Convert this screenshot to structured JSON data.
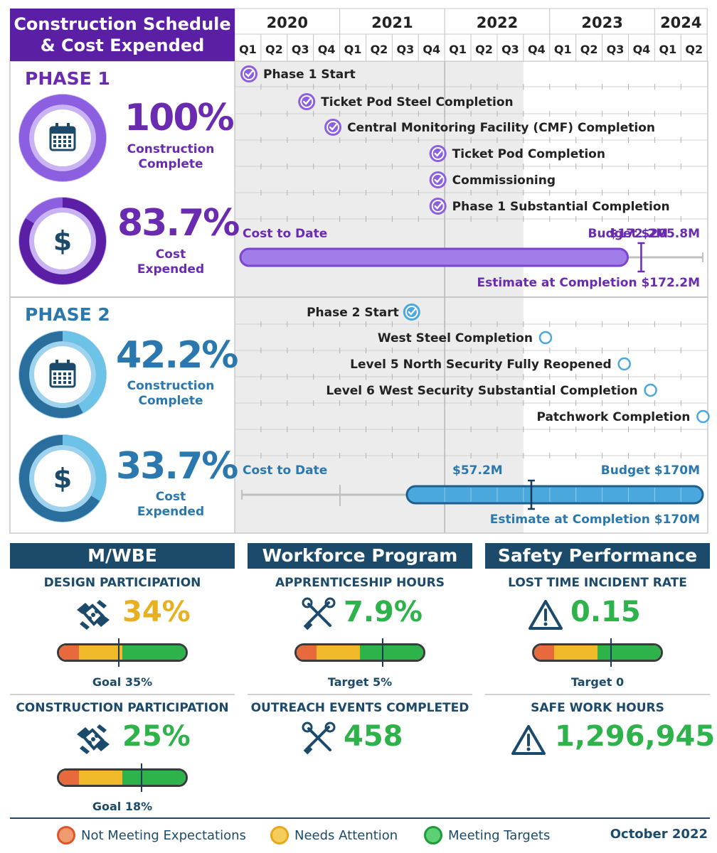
{
  "header": {
    "title_line1": "Construction Schedule",
    "title_line2": "& Cost Expended"
  },
  "timeline": {
    "years": [
      "2020",
      "2021",
      "2022",
      "2023",
      "2024"
    ],
    "quarters": [
      "Q1",
      "Q2",
      "Q3",
      "Q4",
      "Q1",
      "Q2",
      "Q3",
      "Q4",
      "Q1",
      "Q2",
      "Q3",
      "Q4",
      "Q1",
      "Q2",
      "Q3",
      "Q4",
      "Q1",
      "Q2"
    ]
  },
  "chart_data": {
    "type": "timeline",
    "phases": [
      {
        "name": "PHASE 1",
        "construction_pct": "100%",
        "construction_value": 100,
        "construction_label_1": "Construction",
        "construction_label_2": "Complete",
        "cost_pct": "83.7%",
        "cost_value": 83.7,
        "cost_label_1": "Cost",
        "cost_label_2": "Expended",
        "milestones": [
          {
            "label": "Phase 1 Start",
            "quarter_index": 0.0,
            "status": "complete"
          },
          {
            "label": "Ticket Pod Steel Completion",
            "quarter_index": 2.2,
            "status": "complete"
          },
          {
            "label": "Central Monitoring Facility (CMF) Completion",
            "quarter_index": 3.2,
            "status": "complete"
          },
          {
            "label": "Ticket Pod Completion",
            "quarter_index": 7.2,
            "status": "complete"
          },
          {
            "label": "Commissioning",
            "quarter_index": 7.2,
            "status": "complete"
          },
          {
            "label": "Phase 1 Substantial Completion",
            "quarter_index": 7.2,
            "status": "complete"
          }
        ],
        "cost": {
          "cost_to_date_label": "Cost to Date",
          "cost_to_date": "$172.2M",
          "budget": "Budget $205.8M",
          "estimate": "Estimate at Completion $172.2M",
          "cost_to_date_value": 172.2,
          "budget_value": 205.8,
          "estimate_value": 172.2
        }
      },
      {
        "name": "PHASE 2",
        "construction_pct": "42.2%",
        "construction_value": 42.2,
        "construction_label_1": "Construction",
        "construction_label_2": "Complete",
        "cost_pct": "33.7%",
        "cost_value": 33.7,
        "cost_label_1": "Cost",
        "cost_label_2": "Expended",
        "milestones": [
          {
            "label": "Phase 2 Start",
            "quarter_index": 6.2,
            "status": "complete"
          },
          {
            "label": "West Steel Completion",
            "quarter_index": 11.3,
            "status": "pending"
          },
          {
            "label": "Level 5 North Security Fully Reopened",
            "quarter_index": 14.3,
            "status": "pending"
          },
          {
            "label": "Level 6 West Security Substantial Completion",
            "quarter_index": 15.3,
            "status": "pending"
          },
          {
            "label": "Patchwork Completion",
            "quarter_index": 17.3,
            "status": "pending"
          }
        ],
        "cost": {
          "cost_to_date_label": "Cost to Date",
          "cost_to_date": "$57.2M",
          "budget": "Budget $170M",
          "estimate": "Estimate at Completion $170M",
          "cost_to_date_value": 57.2,
          "budget_value": 170,
          "estimate_value": 170
        }
      }
    ]
  },
  "panels": {
    "mwbe": {
      "title": "M/WBE",
      "m1": {
        "title": "DESIGN PARTICIPATION",
        "value": "34%",
        "goal": "Goal 35%",
        "level": 0.47,
        "color": "#e8b020",
        "icon": "handshake-icon"
      },
      "m2": {
        "title": "CONSTRUCTION PARTICIPATION",
        "value": "25%",
        "goal": "Goal 18%",
        "level": 0.64,
        "color": "#2db34a",
        "icon": "handshake-icon"
      }
    },
    "workforce": {
      "title": "Workforce Program",
      "m1": {
        "title": "APPRENTICESHIP HOURS",
        "value": "7.9%",
        "goal": "Target 5%",
        "level": 0.67,
        "color": "#2db34a",
        "icon": "tools-icon"
      },
      "m2": {
        "title": "OUTREACH EVENTS COMPLETED",
        "value": "458",
        "color": "#2db34a",
        "icon": "tools-icon"
      }
    },
    "safety": {
      "title": "Safety Performance",
      "m1": {
        "title": "LOST TIME INCIDENT RATE",
        "value": "0.15",
        "goal": "Target 0",
        "level": 0.6,
        "color": "#2db34a",
        "icon": "warning-icon"
      },
      "m2": {
        "title": "SAFE WORK HOURS",
        "value": "1,296,945",
        "color": "#2db34a",
        "icon": "warning-icon"
      }
    }
  },
  "legend": {
    "not_meeting": "Not Meeting Expectations",
    "needs_attention": "Needs Attention",
    "meeting": "Meeting Targets",
    "date": "October 2022"
  },
  "colors": {
    "phase1": "#6a2bb0",
    "phase1_light": "#a07de8",
    "phase2": "#2a78ad",
    "phase2_light": "#6dc2e8",
    "navy": "#1b4a6b",
    "green": "#2db34a",
    "yellow": "#f0b92a",
    "red": "#e8693c"
  }
}
